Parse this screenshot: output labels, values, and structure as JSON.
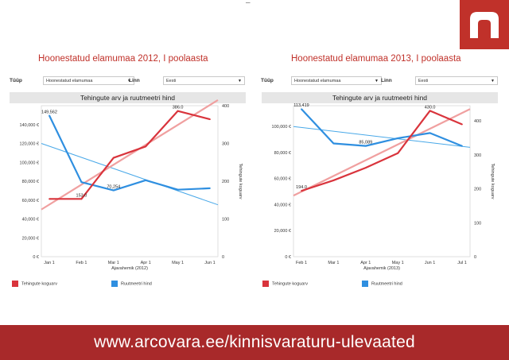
{
  "header": {
    "dash": "–",
    "logo": "arcovara-logo"
  },
  "panels": [
    {
      "title": "Hoonestatud elamumaa 2012, I poolaasta",
      "type_label": "Tüüp",
      "type_value": "Hoonestatud elamumaa",
      "city_label": "Linn",
      "city_value": "Eesti",
      "legend": [
        "Tehingute koguarv",
        "Ruutmeetri hind"
      ]
    },
    {
      "title": "Hoonestatud elamumaa 2013, I poolaasta",
      "type_label": "Tüüp",
      "type_value": "Hoonestatud elamumaa",
      "city_label": "Linn",
      "city_value": "Eesti",
      "legend": [
        "Tehingute koguarv",
        "Ruutmeetri hind"
      ]
    }
  ],
  "footer": {
    "url": "www.arcovara.ee/kinnisvaraturu-ulevaated"
  },
  "colors": {
    "brand": "#c0312a",
    "banner": "#a8292a",
    "count": "#d9343c",
    "price": "#2f8fe0",
    "trend_count": "#f0a0a0",
    "trend_price": "#48a8e8"
  },
  "chart_data": [
    {
      "type": "line",
      "title": "Tehingute arv ja ruutmeetri hind",
      "xlabel": "Ajavahemik (2012)",
      "ylabel_right": "Tehingute koguarv",
      "categories": [
        "Jan 1",
        "Feb 1",
        "Mar 1",
        "Apr 1",
        "May 1",
        "Jun 1"
      ],
      "y_left_ticks": [
        "0 €",
        "20,000 €",
        "40,000 €",
        "60,000 €",
        "80,000 €",
        "100,000 €",
        "120,000 €",
        "140,000 €"
      ],
      "y_left_lim": [
        0,
        160000
      ],
      "y_right_ticks": [
        "0",
        "100",
        "200",
        "300",
        "400"
      ],
      "y_right_lim": [
        0,
        400
      ],
      "series": [
        {
          "name": "Ruutmeetri hind",
          "axis": "left",
          "values": [
            149562,
            79000,
            70254,
            81000,
            71000,
            72500
          ],
          "trend": [
            120000,
            55000
          ],
          "labels": [
            [
              0,
              "149,562"
            ],
            [
              2,
              "70,254"
            ]
          ]
        },
        {
          "name": "Tehingute koguarv",
          "axis": "right",
          "values": [
            153,
            153,
            262,
            292,
            386,
            364
          ],
          "trend": [
            125,
            415
          ],
          "labels": [
            [
              1,
              "153.0"
            ],
            [
              4,
              "386.0"
            ]
          ]
        }
      ]
    },
    {
      "type": "line",
      "title": "Tehingute arv ja ruutmeetri hind",
      "xlabel": "Ajavahemik (2013)",
      "ylabel_right": "Tehingute koguarv",
      "categories": [
        "Feb 1",
        "Mar 1",
        "Apr 1",
        "May 1",
        "Jun 1",
        "Jul 1"
      ],
      "y_left_ticks": [
        "0 €",
        "20,000 €",
        "40,000 €",
        "60,000 €",
        "80,000 €",
        "100,000 €"
      ],
      "y_left_lim": [
        0,
        116000
      ],
      "y_right_ticks": [
        "0",
        "100",
        "200",
        "300",
        "400"
      ],
      "y_right_lim": [
        0,
        445
      ],
      "series": [
        {
          "name": "Ruutmeetri hind",
          "axis": "left",
          "values": [
            113419,
            87000,
            85089,
            91000,
            95000,
            85000
          ],
          "trend": [
            100000,
            84000
          ],
          "labels": [
            [
              0,
              "113,419"
            ],
            [
              2,
              "85,089"
            ]
          ]
        },
        {
          "name": "Tehingute koguarv",
          "axis": "right",
          "values": [
            194,
            225,
            262,
            305,
            430,
            390
          ],
          "trend": [
            180,
            435
          ],
          "labels": [
            [
              0,
              "194.0"
            ],
            [
              4,
              "430.0"
            ]
          ]
        }
      ]
    }
  ]
}
